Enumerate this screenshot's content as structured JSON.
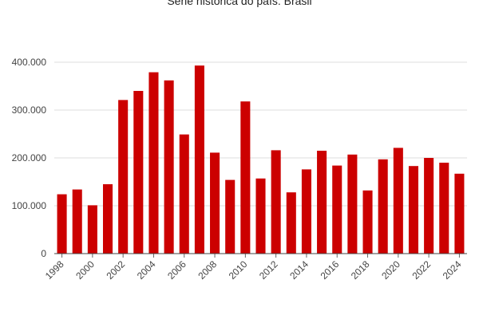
{
  "chart_data": {
    "type": "bar",
    "title": "Serie histórica do país: Brasil",
    "xlabel": "",
    "ylabel": "",
    "categories": [
      "1998",
      "1999",
      "2000",
      "2001",
      "2002",
      "2003",
      "2004",
      "2005",
      "2006",
      "2007",
      "2008",
      "2009",
      "2010",
      "2011",
      "2012",
      "2013",
      "2014",
      "2015",
      "2016",
      "2017",
      "2018",
      "2019",
      "2020",
      "2021",
      "2022",
      "2023",
      "2024"
    ],
    "x_tick_labels": [
      "1998",
      "2000",
      "2002",
      "2004",
      "2006",
      "2008",
      "2010",
      "2012",
      "2014",
      "2016",
      "2018",
      "2020",
      "2022",
      "2024"
    ],
    "values": [
      124000,
      134000,
      101000,
      145000,
      321000,
      340000,
      379000,
      362000,
      249000,
      393000,
      211000,
      154000,
      318000,
      157000,
      216000,
      128000,
      176000,
      215000,
      184000,
      207000,
      132000,
      197000,
      221000,
      183000,
      200000,
      190000,
      167000
    ],
    "ylim": [
      0,
      400000
    ],
    "y_ticks": [
      0,
      100000,
      200000,
      300000,
      400000
    ],
    "y_tick_labels": [
      "0",
      "100.000",
      "200.000",
      "300.000",
      "400.000"
    ],
    "bar_color": "#cc0000",
    "grid": true,
    "legend": "none"
  }
}
